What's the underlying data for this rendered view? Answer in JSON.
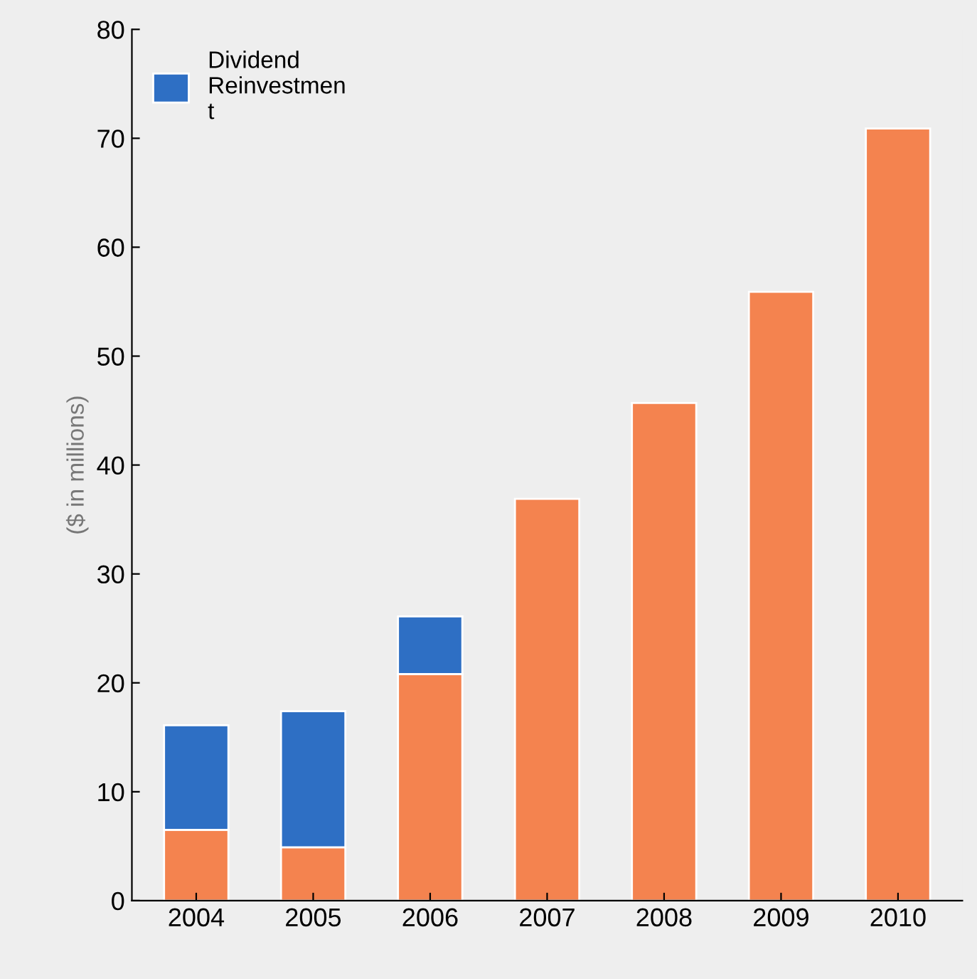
{
  "chart_data": {
    "type": "bar",
    "stacked": true,
    "ylabel": "($ in millions)",
    "categories": [
      "2004",
      "2005",
      "2006",
      "2007",
      "2008",
      "2009",
      "2010"
    ],
    "series": [
      {
        "color": "#f4834f",
        "values": [
          6.5,
          4.9,
          20.8,
          36.9,
          45.7,
          55.9,
          70.9
        ]
      },
      {
        "name": "Dividend\nReinvestmen\nt",
        "color": "#2e6fc4",
        "values": [
          9.6,
          12.5,
          5.3,
          null,
          null,
          null,
          null
        ]
      }
    ],
    "ylim": [
      0,
      80
    ],
    "yticks": [
      0,
      10,
      20,
      30,
      40,
      50,
      60,
      70,
      80
    ],
    "grid": false,
    "legend": "top left"
  }
}
